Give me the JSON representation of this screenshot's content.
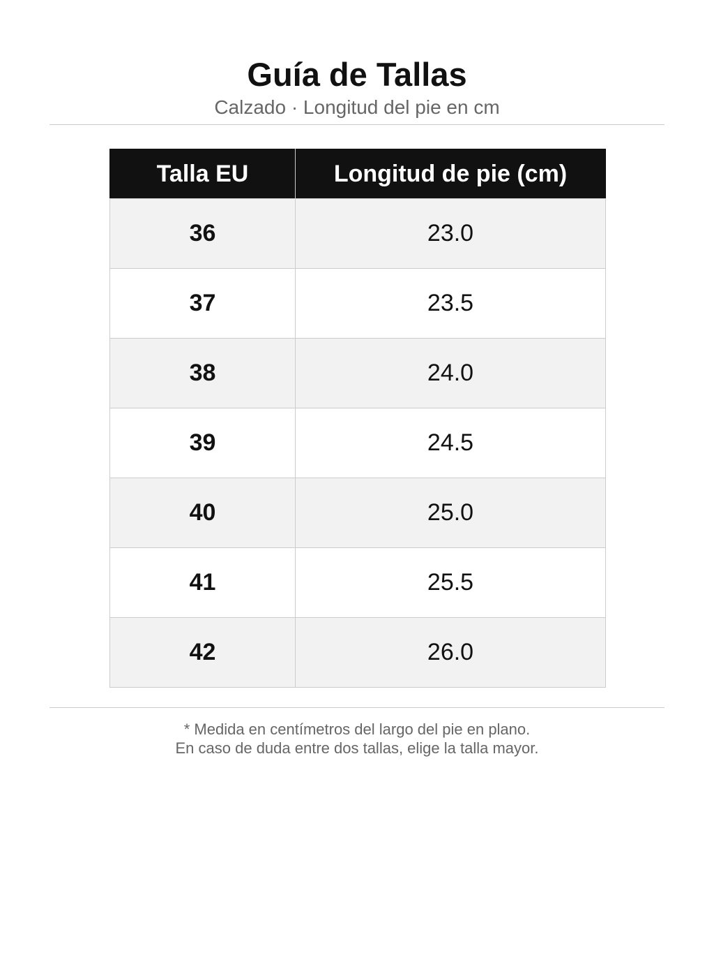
{
  "header": {
    "title": "Guía de Tallas",
    "subtitle": "Calzado · Longitud del pie en cm"
  },
  "table": {
    "columns": [
      "Talla EU",
      "Longitud de pie (cm)"
    ],
    "rows": [
      [
        "36",
        "23.0"
      ],
      [
        "37",
        "23.5"
      ],
      [
        "38",
        "24.0"
      ],
      [
        "39",
        "24.5"
      ],
      [
        "40",
        "25.0"
      ],
      [
        "41",
        "25.5"
      ],
      [
        "42",
        "26.0"
      ]
    ]
  },
  "footer": {
    "lines": [
      "* Medida en centímetros del largo del pie en plano.",
      "En caso de duda entre dos tallas, elige la talla mayor."
    ]
  }
}
